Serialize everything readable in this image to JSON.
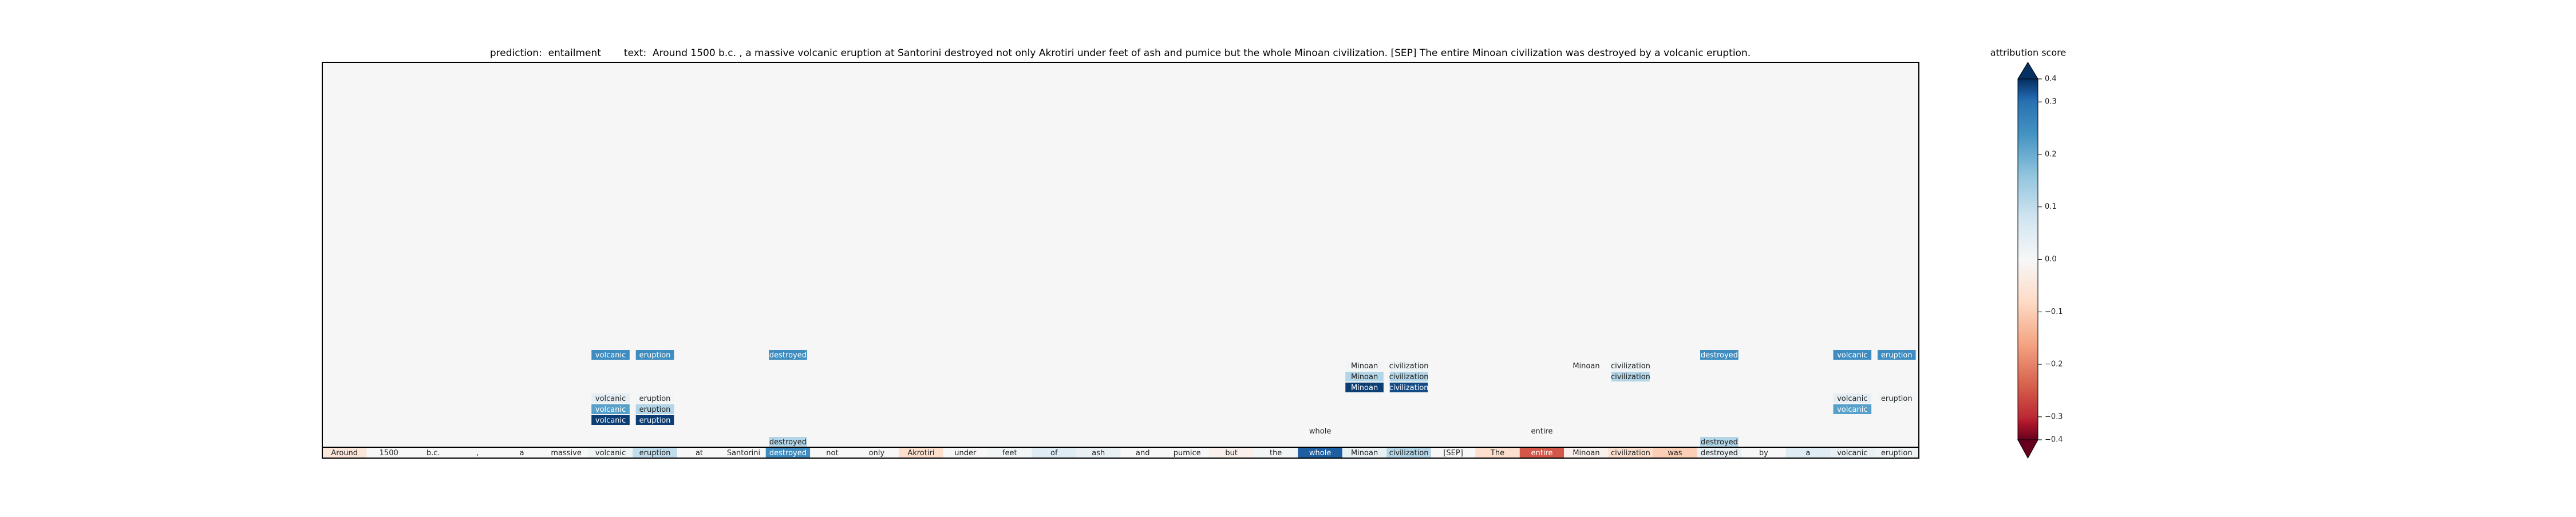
{
  "chart_data": {
    "type": "token-attribution",
    "title_prediction": "prediction:  entailment",
    "title_text": "text:  Around 1500 b.c. , a massive volcanic eruption at Santorini destroyed not only Akrotiri under feet of ash and pumice but the whole Minoan civilization. [SEP] The entire Minoan civilization was destroyed by a volcanic eruption.",
    "colormap": "RdBu",
    "tokens": [
      "Around",
      "1500",
      "b.c.",
      ",",
      "a",
      "massive",
      "volcanic",
      "eruption",
      "at",
      "Santorini",
      "destroyed",
      "not",
      "only",
      "Akrotiri",
      "under",
      "feet",
      "of",
      "ash",
      "and",
      "pumice",
      "but",
      "the",
      "whole",
      "Minoan",
      "civilization",
      "[SEP]",
      "The",
      "entire",
      "Minoan",
      "civilization",
      "was",
      "destroyed",
      "by",
      "a",
      "volcanic",
      "eruption"
    ],
    "values": [
      -0.05,
      0,
      0,
      0,
      0,
      0,
      0.02,
      0.1,
      0,
      0,
      0.25,
      0,
      0,
      -0.07,
      0,
      0.01,
      0.05,
      0.03,
      0,
      0,
      -0.02,
      0.01,
      0.33,
      0.03,
      0.12,
      0,
      -0.07,
      -0.25,
      -0.02,
      -0.07,
      -0.1,
      0.03,
      0,
      0.05,
      0.03,
      0.02
    ],
    "rows": [
      {
        "tokens": [
          "destroyed",
          "destroyed"
        ],
        "token_index": [
          10,
          31
        ],
        "values": [
          0.12,
          0.12
        ]
      },
      {
        "tokens": [
          "whole",
          "entire"
        ],
        "token_index": [
          22,
          27
        ],
        "values": [
          0,
          0
        ]
      },
      {
        "tokens": [
          "volcanic",
          "eruption"
        ],
        "token_index": [
          6,
          7
        ],
        "values": [
          0.38,
          0.38
        ]
      },
      {
        "tokens": [
          "volcanic",
          "eruption",
          "volcanic"
        ],
        "token_index": [
          6,
          7,
          34
        ],
        "values": [
          0.22,
          0.12,
          0.22
        ]
      },
      {
        "tokens": [
          "volcanic",
          "eruption",
          "volcanic",
          "eruption"
        ],
        "token_index": [
          6,
          7,
          34,
          35
        ],
        "values": [
          0.04,
          0.01,
          0.04,
          0.01
        ]
      },
      {
        "tokens": [
          "Minoan",
          "civilization"
        ],
        "token_index": [
          23,
          24
        ],
        "values": [
          0.38,
          0.36
        ]
      },
      {
        "tokens": [
          "Minoan",
          "civilization",
          "civilization"
        ],
        "token_index": [
          23,
          24,
          29
        ],
        "values": [
          0.12,
          0.12,
          0.12
        ]
      },
      {
        "tokens": [
          "Minoan",
          "civilization",
          "Minoan",
          "civilization"
        ],
        "token_index": [
          23,
          24,
          28,
          29
        ],
        "values": [
          0.01,
          0.02,
          0,
          0.02
        ]
      },
      {
        "tokens": [
          "volcanic",
          "eruption",
          "destroyed",
          "destroyed",
          "volcanic",
          "eruption"
        ],
        "token_index": [
          6,
          7,
          10,
          31,
          34,
          35
        ],
        "values": [
          0.25,
          0.25,
          0.25,
          0.25,
          0.25,
          0.25
        ]
      }
    ],
    "colorbar": {
      "label": "attribution score",
      "lim": [
        -0.4,
        0.4
      ],
      "ticks": [
        0.4,
        0.3,
        0.2,
        0.1,
        {
          "value": 0,
          "label": "0.0"
        },
        {
          "value": -0.1,
          "label": "−0.1"
        },
        {
          "value": -0.2,
          "label": "−0.2"
        },
        {
          "value": -0.3,
          "label": "−0.3"
        },
        {
          "value": -0.4,
          "label": "−0.4"
        }
      ]
    }
  }
}
